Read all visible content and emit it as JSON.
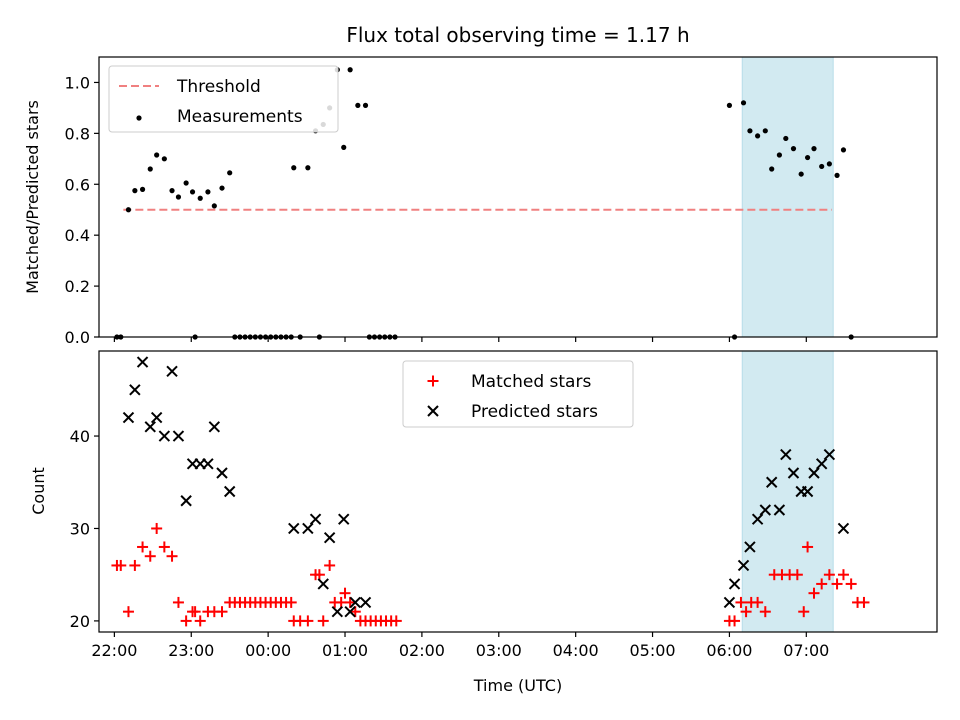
{
  "chart_data": [
    {
      "type": "scatter",
      "title": "Flux total observing time = 1.17 h",
      "xlabel": "",
      "ylabel": "Matched/Predicted stars",
      "xlim": [
        "21:48",
        "08:42"
      ],
      "ylim": [
        0,
        1.1
      ],
      "yticks": [
        0.0,
        0.2,
        0.4,
        0.6,
        0.8,
        1.0
      ],
      "ytick_labels": [
        "0.0",
        "0.2",
        "0.4",
        "0.6",
        "0.8",
        "1.0"
      ],
      "legend": {
        "placement": "upper-left"
      },
      "shaded_span": {
        "start": "06:10",
        "end": "07:21",
        "color": "#add8e6"
      },
      "series": [
        {
          "name": "Threshold",
          "kind": "dashed-line",
          "color": "#f08080",
          "points": [
            [
              "22:07",
              0.5
            ],
            [
              "07:20",
              0.5
            ]
          ]
        },
        {
          "name": "Measurements",
          "kind": "dots",
          "color": "#000000",
          "points": [
            [
              "22:02",
              0.0
            ],
            [
              "22:05",
              0.0
            ],
            [
              "22:11",
              0.5
            ],
            [
              "22:16",
              0.575
            ],
            [
              "22:22",
              0.58
            ],
            [
              "22:28",
              0.66
            ],
            [
              "22:33",
              0.715
            ],
            [
              "22:39",
              0.7
            ],
            [
              "22:45",
              0.575
            ],
            [
              "22:50",
              0.55
            ],
            [
              "22:56",
              0.605
            ],
            [
              "23:01",
              0.57
            ],
            [
              "23:03",
              0.0
            ],
            [
              "23:07",
              0.545
            ],
            [
              "23:13",
              0.57
            ],
            [
              "23:18",
              0.515
            ],
            [
              "23:24",
              0.585
            ],
            [
              "23:30",
              0.645
            ],
            [
              "23:34",
              0.0
            ],
            [
              "23:38",
              0.0
            ],
            [
              "23:42",
              0.0
            ],
            [
              "23:46",
              0.0
            ],
            [
              "23:50",
              0.0
            ],
            [
              "23:54",
              0.0
            ],
            [
              "23:58",
              0.0
            ],
            [
              "00:02",
              0.0
            ],
            [
              "00:06",
              0.0
            ],
            [
              "00:10",
              0.0
            ],
            [
              "00:14",
              0.0
            ],
            [
              "00:18",
              0.0
            ],
            [
              "00:20",
              0.665
            ],
            [
              "00:25",
              0.0
            ],
            [
              "00:31",
              0.665
            ],
            [
              "00:37",
              0.81
            ],
            [
              "00:40",
              0.0
            ],
            [
              "00:43",
              0.835
            ],
            [
              "00:48",
              0.9
            ],
            [
              "00:54",
              1.05
            ],
            [
              "00:59",
              0.745
            ],
            [
              "01:04",
              1.05
            ],
            [
              "01:10",
              0.91
            ],
            [
              "01:16",
              0.91
            ],
            [
              "01:19",
              0.0
            ],
            [
              "01:23",
              0.0
            ],
            [
              "01:27",
              0.0
            ],
            [
              "01:31",
              0.0
            ],
            [
              "01:35",
              0.0
            ],
            [
              "01:39",
              0.0
            ],
            [
              "06:00",
              0.91
            ],
            [
              "06:04",
              0.0
            ],
            [
              "06:11",
              0.92
            ],
            [
              "06:16",
              0.81
            ],
            [
              "06:22",
              0.79
            ],
            [
              "06:28",
              0.81
            ],
            [
              "06:33",
              0.66
            ],
            [
              "06:39",
              0.715
            ],
            [
              "06:44",
              0.78
            ],
            [
              "06:50",
              0.74
            ],
            [
              "06:56",
              0.64
            ],
            [
              "07:01",
              0.705
            ],
            [
              "07:06",
              0.74
            ],
            [
              "07:12",
              0.67
            ],
            [
              "07:18",
              0.68
            ],
            [
              "07:24",
              0.635
            ],
            [
              "07:29",
              0.735
            ],
            [
              "07:35",
              0.0
            ]
          ]
        }
      ]
    },
    {
      "type": "scatter",
      "title": "",
      "xlabel": "Time (UTC)",
      "ylabel": "Count",
      "xlim": [
        "21:48",
        "08:42"
      ],
      "ylim": [
        18.8,
        49.2
      ],
      "yticks": [
        20,
        30,
        40
      ],
      "ytick_labels": [
        "20",
        "30",
        "40"
      ],
      "xticks": [
        "22:00",
        "23:00",
        "00:00",
        "01:00",
        "02:00",
        "03:00",
        "04:00",
        "05:00",
        "06:00",
        "07:00"
      ],
      "xtick_labels": [
        "22:00",
        "23:00",
        "00:00",
        "01:00",
        "02:00",
        "03:00",
        "04:00",
        "05:00",
        "06:00",
        "07:00"
      ],
      "legend": {
        "placement": "upper-center"
      },
      "shaded_span": {
        "start": "06:10",
        "end": "07:21",
        "color": "#add8e6"
      },
      "series": [
        {
          "name": "Matched stars",
          "kind": "plus",
          "color": "#ff0000",
          "points": [
            [
              "22:02",
              26
            ],
            [
              "22:05",
              26
            ],
            [
              "22:11",
              21
            ],
            [
              "22:16",
              26
            ],
            [
              "22:22",
              28
            ],
            [
              "22:28",
              27
            ],
            [
              "22:33",
              30
            ],
            [
              "22:39",
              28
            ],
            [
              "22:45",
              27
            ],
            [
              "22:50",
              22
            ],
            [
              "22:56",
              20
            ],
            [
              "23:01",
              21
            ],
            [
              "23:03",
              21
            ],
            [
              "23:07",
              20
            ],
            [
              "23:13",
              21
            ],
            [
              "23:18",
              21
            ],
            [
              "23:24",
              21
            ],
            [
              "23:30",
              22
            ],
            [
              "23:34",
              22
            ],
            [
              "23:38",
              22
            ],
            [
              "23:42",
              22
            ],
            [
              "23:46",
              22
            ],
            [
              "23:50",
              22
            ],
            [
              "23:54",
              22
            ],
            [
              "23:58",
              22
            ],
            [
              "00:02",
              22
            ],
            [
              "00:06",
              22
            ],
            [
              "00:10",
              22
            ],
            [
              "00:14",
              22
            ],
            [
              "00:18",
              22
            ],
            [
              "00:20",
              20
            ],
            [
              "00:25",
              20
            ],
            [
              "00:31",
              20
            ],
            [
              "00:37",
              25
            ],
            [
              "00:40",
              25
            ],
            [
              "00:43",
              20
            ],
            [
              "00:48",
              26
            ],
            [
              "00:52",
              22
            ],
            [
              "00:57",
              22
            ],
            [
              "01:00",
              23
            ],
            [
              "01:04",
              22
            ],
            [
              "01:08",
              21
            ],
            [
              "01:12",
              20
            ],
            [
              "01:16",
              20
            ],
            [
              "01:20",
              20
            ],
            [
              "01:24",
              20
            ],
            [
              "01:28",
              20
            ],
            [
              "01:32",
              20
            ],
            [
              "01:36",
              20
            ],
            [
              "01:40",
              20
            ],
            [
              "06:00",
              20
            ],
            [
              "06:04",
              20
            ],
            [
              "06:09",
              22
            ],
            [
              "06:13",
              21
            ],
            [
              "06:17",
              22
            ],
            [
              "06:22",
              22
            ],
            [
              "06:28",
              21
            ],
            [
              "06:35",
              25
            ],
            [
              "06:41",
              25
            ],
            [
              "06:47",
              25
            ],
            [
              "06:53",
              25
            ],
            [
              "06:58",
              21
            ],
            [
              "07:01",
              28
            ],
            [
              "07:06",
              23
            ],
            [
              "07:12",
              24
            ],
            [
              "07:18",
              25
            ],
            [
              "07:24",
              24
            ],
            [
              "07:29",
              25
            ],
            [
              "07:35",
              24
            ],
            [
              "07:40",
              22
            ],
            [
              "07:45",
              22
            ]
          ]
        },
        {
          "name": "Predicted stars",
          "kind": "x",
          "color": "#000000",
          "points": [
            [
              "22:11",
              42
            ],
            [
              "22:16",
              45
            ],
            [
              "22:22",
              48
            ],
            [
              "22:28",
              41
            ],
            [
              "22:33",
              42
            ],
            [
              "22:39",
              40
            ],
            [
              "22:45",
              47
            ],
            [
              "22:50",
              40
            ],
            [
              "22:56",
              33
            ],
            [
              "23:01",
              37
            ],
            [
              "23:07",
              37
            ],
            [
              "23:13",
              37
            ],
            [
              "23:18",
              41
            ],
            [
              "23:24",
              36
            ],
            [
              "23:30",
              34
            ],
            [
              "00:20",
              30
            ],
            [
              "00:31",
              30
            ],
            [
              "00:37",
              31
            ],
            [
              "00:43",
              24
            ],
            [
              "00:48",
              29
            ],
            [
              "00:54",
              21
            ],
            [
              "00:59",
              31
            ],
            [
              "01:04",
              21
            ],
            [
              "01:08",
              22
            ],
            [
              "01:16",
              22
            ],
            [
              "06:00",
              22
            ],
            [
              "06:04",
              24
            ],
            [
              "06:11",
              26
            ],
            [
              "06:16",
              28
            ],
            [
              "06:22",
              31
            ],
            [
              "06:28",
              32
            ],
            [
              "06:33",
              35
            ],
            [
              "06:39",
              32
            ],
            [
              "06:44",
              38
            ],
            [
              "06:50",
              36
            ],
            [
              "06:56",
              34
            ],
            [
              "07:01",
              34
            ],
            [
              "07:06",
              36
            ],
            [
              "07:12",
              37
            ],
            [
              "07:18",
              38
            ],
            [
              "07:29",
              30
            ]
          ]
        }
      ]
    }
  ]
}
